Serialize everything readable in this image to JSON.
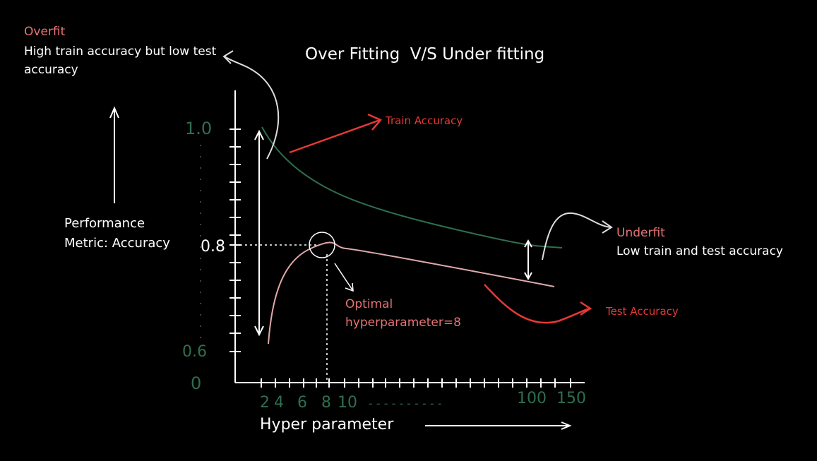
{
  "title": "Over Fitting  V/S Under fitting",
  "overfit": {
    "heading": "Overfit",
    "description": "High train accuracy but low test accuracy"
  },
  "underfit": {
    "heading": "Underfit",
    "description": "Low train and test accuracy"
  },
  "y_axis_label": [
    "Performance",
    "Metric: Accuracy"
  ],
  "x_axis_label": "Hyper parameter",
  "train_curve_label": "Train Accuracy",
  "test_curve_label": "Test Accuracy",
  "optimal_label": [
    "Optimal",
    "hyperparameter=8"
  ],
  "y_ticks": [
    "1.0",
    "0.8",
    "0.6",
    "0"
  ],
  "x_ticks": [
    "2",
    "4",
    "6",
    "8",
    "10",
    "- - - - - - - - - -",
    "100",
    "150"
  ],
  "colors": {
    "background": "#000000",
    "text": "#ffffff",
    "label_red": "#e53935",
    "label_pink": "#e57373",
    "train_curve": "#2f6e4f",
    "test_curve": "#e0a8a8",
    "axes": "#ffffff",
    "hand_numbers": "#2f6e4f"
  }
}
